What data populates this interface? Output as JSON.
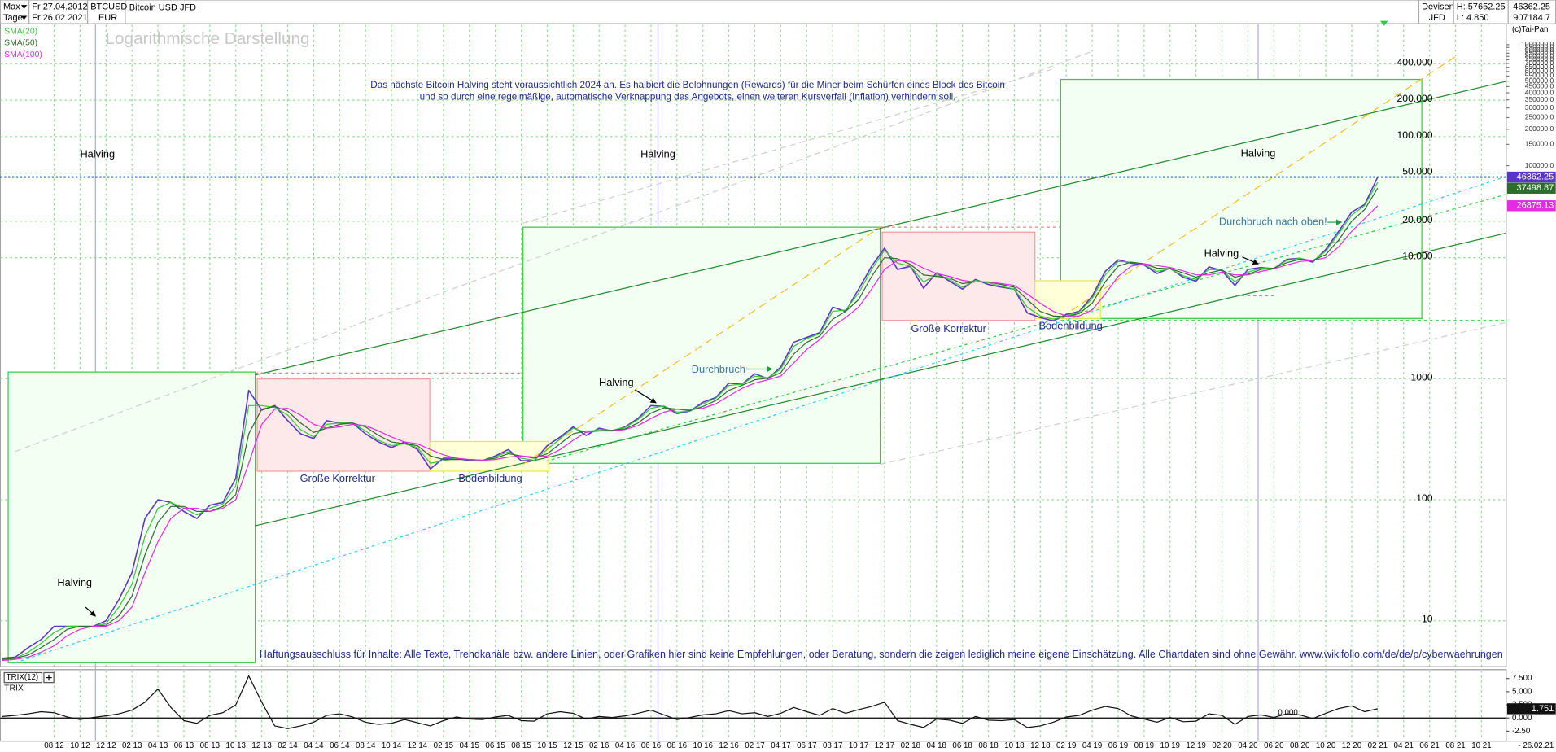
{
  "header": {
    "range": "Max",
    "interval": "Tage",
    "start": "Fr 27.04.2012",
    "end": "Fr 26.02.2021",
    "symbol": "BTCUSD",
    "currency": "EUR",
    "name": "Bitcoin USD JFD",
    "market": "Devisen",
    "broker": "JFD",
    "high": "H: 57652.25",
    "low": "L: 4.850",
    "last": "46362.25",
    "volume": "907184.7",
    "copyright": "(c)Tai-Pan"
  },
  "chart_data": [
    {
      "type": "line",
      "subtitle": "Logarithmische Darstellung",
      "log_scale": true,
      "grid": true,
      "legend": "top-left",
      "categories": [
        null,
        null,
        null,
        null,
        "08 12",
        null,
        "10 12",
        null,
        "12 12",
        null,
        "02 13",
        null,
        "04 13",
        null,
        "06 13",
        null,
        "08 13",
        null,
        "10 13",
        null,
        "12 13",
        null,
        "02 14",
        null,
        "04 14",
        null,
        "06 14",
        null,
        "08 14",
        null,
        "10 14",
        null,
        "12 14",
        null,
        "02 15",
        null,
        "04 15",
        null,
        "06 15",
        null,
        "08 15",
        null,
        "10 15",
        null,
        "12 15",
        null,
        "02 16",
        null,
        "04 16",
        null,
        "06 16",
        null,
        "08 16",
        null,
        "10 16",
        null,
        "12 16",
        null,
        "02 17",
        null,
        "04 17",
        null,
        "06 17",
        null,
        "08 17",
        null,
        "10 17",
        null,
        "12 17",
        null,
        "02 18",
        null,
        "04 18",
        null,
        "06 18",
        null,
        "08 18",
        null,
        "10 18",
        null,
        "12 18",
        null,
        "02 19",
        null,
        "04 19",
        null,
        "06 19",
        null,
        "08 19",
        null,
        "10 19",
        null,
        "12 19",
        null,
        "02 20",
        null,
        "04 20",
        null,
        "06 20",
        null,
        "08 20",
        null,
        "10 20",
        null,
        "12 20",
        null,
        "02 21",
        null,
        "04 21",
        null,
        "06 21",
        null,
        "08 21",
        null,
        "10 21",
        null,
        null
      ],
      "ylim": [
        4.5,
        840000
      ],
      "yticks": [
        10,
        100,
        1000,
        {
          "value": 10000,
          "label": "10.000"
        },
        {
          "value": 20000,
          "label": "20.000"
        },
        {
          "value": 50000,
          "label": "50.000"
        },
        {
          "value": 100000,
          "label": "100.000"
        },
        {
          "value": 200000,
          "label": "200.000"
        },
        {
          "value": 400000,
          "label": "400.000"
        }
      ],
      "y2lim": [
        7.82,
        1459000
      ],
      "y2ticks": [
        {
          "value": 100000,
          "label": "100000.0"
        },
        {
          "value": 150000,
          "label": "150000.0"
        },
        {
          "value": 200000,
          "label": "200000.0"
        },
        {
          "value": 250000,
          "label": "250000.0"
        },
        {
          "value": 300000,
          "label": "300000.0"
        },
        {
          "value": 350000,
          "label": "350000.0"
        },
        {
          "value": 400000,
          "label": "400000.0"
        },
        {
          "value": 450000,
          "label": "450000.0"
        },
        {
          "value": 500000,
          "label": "500000.0"
        },
        {
          "value": 550000,
          "label": "550000.0"
        },
        {
          "value": 600000,
          "label": "600000.0"
        },
        {
          "value": 650000,
          "label": "650000.0"
        },
        {
          "value": 700000,
          "label": "700000.0"
        },
        {
          "value": 750000,
          "label": "750000.0"
        },
        {
          "value": 800000,
          "label": "800000.0"
        },
        {
          "value": 850000,
          "label": "850000.0"
        },
        {
          "value": 900000,
          "label": "900000.0"
        },
        {
          "value": 950000,
          "label": "950000.0"
        },
        {
          "value": 1000000,
          "label": "1000000.0"
        }
      ],
      "series": [
        {
          "color": "#5a35c8",
          "show_last": true,
          "price_line": true,
          "values": [
            4.9,
            5,
            6,
            7,
            9,
            9,
            9,
            9,
            10,
            15,
            25,
            70,
            100,
            95,
            80,
            70,
            90,
            95,
            150,
            800,
            550,
            600,
            450,
            350,
            320,
            450,
            430,
            430,
            350,
            300,
            270,
            300,
            260,
            180,
            220,
            220,
            210,
            210,
            230,
            260,
            210,
            210,
            280,
            330,
            400,
            340,
            390,
            370,
            400,
            470,
            600,
            590,
            515,
            540,
            640,
            700,
            920,
            900,
            1100,
            1000,
            1250,
            2000,
            2200,
            2400,
            3900,
            3600,
            5500,
            8500,
            12000,
            8000,
            8500,
            5600,
            7500,
            6400,
            5500,
            6600,
            6000,
            5700,
            5500,
            3500,
            3200,
            3000,
            3400,
            3600,
            4800,
            7700,
            9600,
            9000,
            8700,
            7400,
            8200,
            6900,
            6400,
            8400,
            7800,
            5900,
            8000,
            8300,
            8100,
            9700,
            9900,
            9200,
            11700,
            16500,
            23800,
            27500,
            46362.25,
            null,
            null,
            null,
            null,
            null,
            null,
            null,
            null,
            null,
            null
          ]
        },
        {
          "name": "SMA(20)",
          "color": "#33cc33",
          "values": [
            4.8,
            4.9,
            5.5,
            6.5,
            8,
            9,
            9,
            9,
            9.5,
            13,
            20,
            50,
            85,
            95,
            85,
            75,
            85,
            92,
            130,
            600,
            600,
            580,
            500,
            380,
            330,
            420,
            430,
            430,
            370,
            310,
            280,
            290,
            270,
            200,
            210,
            220,
            215,
            210,
            225,
            250,
            220,
            212,
            260,
            320,
            390,
            360,
            380,
            375,
            395,
            460,
            570,
            595,
            530,
            540,
            620,
            690,
            880,
            900,
            1050,
            1020,
            1200,
            1850,
            2150,
            2350,
            3600,
            3700,
            5100,
            8000,
            11500,
            9000,
            8500,
            6300,
            7200,
            6600,
            5700,
            6500,
            6200,
            5800,
            5500,
            3900,
            3300,
            3100,
            3300,
            3550,
            4600,
            7200,
            9300,
            9200,
            8800,
            7700,
            8100,
            7100,
            6600,
            8000,
            7900,
            6300,
            7600,
            8200,
            8200,
            9500,
            9900,
            9400,
            11300,
            15800,
            22500,
            27000,
            42000,
            null,
            null,
            null,
            null,
            null,
            null,
            null,
            null,
            null,
            null
          ]
        },
        {
          "name": "SMA(50)",
          "color": "#2e6b2e",
          "show_last": true,
          "values": [
            4.8,
            4.9,
            5.2,
            6,
            7,
            8.5,
            9,
            9,
            9.2,
            11,
            16,
            35,
            65,
            88,
            88,
            80,
            80,
            88,
            110,
            350,
            560,
            590,
            540,
            430,
            360,
            390,
            420,
            430,
            400,
            340,
            300,
            290,
            280,
            230,
            215,
            215,
            215,
            212,
            220,
            240,
            230,
            220,
            240,
            290,
            350,
            370,
            370,
            375,
            385,
            430,
            520,
            575,
            560,
            545,
            590,
            660,
            800,
            880,
            980,
            1010,
            1120,
            1600,
            2000,
            2250,
            3100,
            3600,
            4500,
            7000,
            10000,
            9800,
            8800,
            7200,
            7000,
            6800,
            6100,
            6300,
            6300,
            6000,
            5700,
            4500,
            3600,
            3300,
            3250,
            3450,
            4200,
            6300,
            8500,
            9200,
            8900,
            8200,
            8100,
            7500,
            6900,
            7500,
            7900,
            6900,
            7300,
            8000,
            8200,
            9100,
            9700,
            9500,
            10600,
            14000,
            20000,
            25000,
            37498.87,
            null,
            null,
            null,
            null,
            null,
            null,
            null,
            null,
            null,
            null
          ]
        },
        {
          "name": "SMA(100)",
          "color": "#e22be2",
          "show_last": true,
          "values": [
            4.7,
            4.8,
            5,
            5.5,
            6.2,
            7.5,
            8.5,
            9,
            9,
            10,
            13,
            25,
            45,
            70,
            85,
            85,
            80,
            85,
            100,
            200,
            420,
            560,
            570,
            500,
            420,
            390,
            400,
            420,
            410,
            370,
            330,
            300,
            290,
            260,
            235,
            220,
            215,
            212,
            215,
            225,
            230,
            225,
            230,
            260,
            310,
            360,
            370,
            370,
            380,
            410,
            470,
            530,
            560,
            555,
            570,
            620,
            720,
            830,
            920,
            980,
            1050,
            1350,
            1750,
            2100,
            2700,
            3200,
            3900,
            5500,
            8000,
            9500,
            9300,
            8200,
            7400,
            7000,
            6500,
            6300,
            6300,
            6100,
            5900,
            5000,
            4200,
            3600,
            3300,
            3300,
            3700,
            5000,
            7000,
            8500,
            8900,
            8600,
            8300,
            7800,
            7200,
            7200,
            7600,
            7200,
            7200,
            7700,
            8100,
            8700,
            9300,
            9500,
            10000,
            12300,
            16500,
            21000,
            26875.13,
            null,
            null,
            null,
            null,
            null,
            null,
            null,
            null,
            null,
            null
          ]
        }
      ],
      "annotations": [
        "Das nächste Bitcoin Halving steht voraussichtlich 2024 an. Es halbiert die Belohnungen (Rewards) für die Miner beim Schürfen eines Block des Bitcoin",
        "und so durch eine regelmäßige, automatische Verknappung des Angebots, einen weiteren Kursverfall (Inflation) verhindern soll.",
        "Halving",
        "Halving",
        "Halving",
        "Halving",
        "Halving",
        "Halving",
        "Große Korrektur",
        "Bodenbildung",
        "Große Korrektur",
        "Bodenbildung",
        "Durchbruch",
        "Durchbruch nach oben!",
        "Haftungsausschluss für Inhalte: Alle Texte, Trendkanäle bzw. andere Linien, oder Grafiken hier sind keine Empfehlungen, oder Beratung, sondern die zeigen lediglich meine eigene Einschätzung. Alle Chartdaten sind ohne Gewähr.  www.wikifolio.com/de/de/p/cyberwaehrungen"
      ]
    },
    {
      "type": "line",
      "title": "TRIX(12)",
      "legend": "top-left",
      "x_end_label": "- 26.02.21",
      "ylim": [
        -4,
        8.8
      ],
      "yticks": [
        {
          "value": 7.5,
          "label": "7.500"
        },
        {
          "value": 5,
          "label": "5.000"
        },
        {
          "value": 2.5,
          "label": "2.500"
        },
        {
          "value": 0,
          "label": "0.000"
        },
        {
          "value": -2.5,
          "label": "-2.50"
        }
      ],
      "hlines": [
        {
          "value": 0,
          "label": "0.000"
        }
      ],
      "series": [
        {
          "name": "TRIX",
          "color": "#111111",
          "show_last": true,
          "values": [
            0.3,
            0.5,
            0.8,
            1.2,
            1.0,
            0.2,
            -0.3,
            0.1,
            0.4,
            0.8,
            1.5,
            3.0,
            5.5,
            2.0,
            -0.5,
            -1.0,
            0.5,
            1.0,
            2.5,
            8.0,
            3.0,
            -1.5,
            -2.0,
            -1.5,
            -0.8,
            0.5,
            0.8,
            0.2,
            -0.8,
            -1.2,
            -1.0,
            -0.3,
            -0.9,
            -1.5,
            -0.5,
            0.2,
            -0.2,
            -0.3,
            0.2,
            0.5,
            -0.5,
            -0.6,
            0.8,
            1.2,
            0.9,
            -0.2,
            0.3,
            0.1,
            0.4,
            0.9,
            1.5,
            0.6,
            -0.3,
            0.1,
            0.6,
            0.8,
            1.4,
            0.8,
            1.0,
            0.3,
            0.9,
            2.0,
            1.2,
            0.5,
            1.8,
            0.9,
            1.6,
            2.2,
            3.0,
            -0.5,
            -1.2,
            -1.8,
            -0.2,
            -0.4,
            -1.0,
            0.3,
            -0.4,
            -0.5,
            -0.3,
            -1.8,
            -1.5,
            -0.8,
            0.2,
            0.5,
            1.5,
            2.2,
            1.8,
            0.4,
            -0.2,
            -0.8,
            0.1,
            -0.7,
            -0.6,
            0.8,
            0.5,
            -1.2,
            0.3,
            0.6,
            0.1,
            0.8,
            0.6,
            -0.1,
            0.9,
            1.8,
            2.3,
            1.2,
            1.751,
            null,
            null,
            null,
            null,
            null,
            null,
            null,
            null,
            null,
            null
          ]
        }
      ]
    }
  ]
}
